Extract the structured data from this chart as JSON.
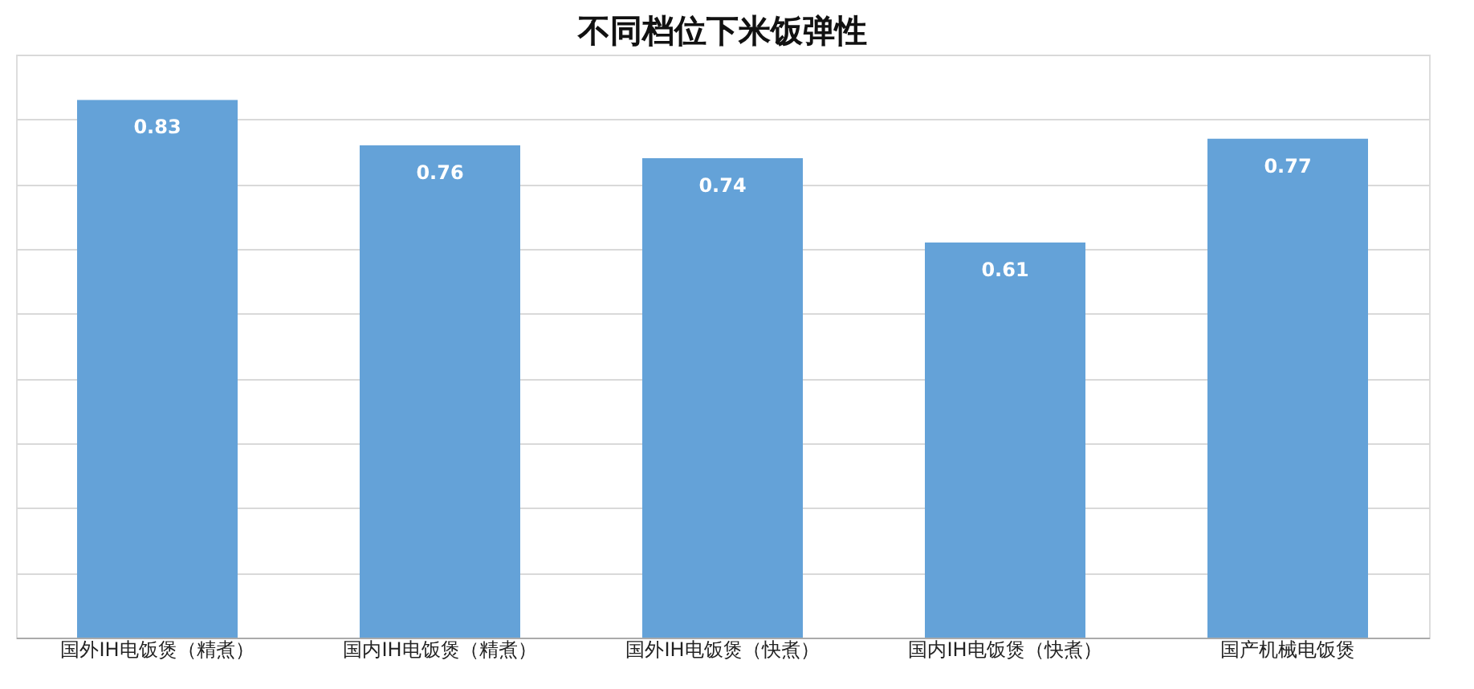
{
  "chart_data": {
    "type": "bar",
    "title": "不同档位下米饭弹性",
    "categories": [
      "国外IH电饭煲（精煮）",
      "国内IH电饭煲（精煮）",
      "国外IH电饭煲（快煮）",
      "国内IH电饭煲（快煮）",
      "国产机械电饭煲"
    ],
    "values": [
      0.83,
      0.76,
      0.74,
      0.61,
      0.77
    ],
    "color": "#64a2d8",
    "data_labels": true,
    "ylim": [
      0,
      0.9
    ],
    "yticks": [
      {
        "value": 0,
        "label": null
      },
      {
        "value": 0.1,
        "label": null
      },
      {
        "value": 0.2,
        "label": null
      },
      {
        "value": 0.3,
        "label": null
      },
      {
        "value": 0.4,
        "label": null
      },
      {
        "value": 0.5,
        "label": null
      },
      {
        "value": 0.6,
        "label": null
      },
      {
        "value": 0.7,
        "label": null
      },
      {
        "value": 0.8,
        "label": null
      },
      {
        "value": 0.9,
        "label": null
      }
    ],
    "grid": "y",
    "tick_labels": "x"
  }
}
